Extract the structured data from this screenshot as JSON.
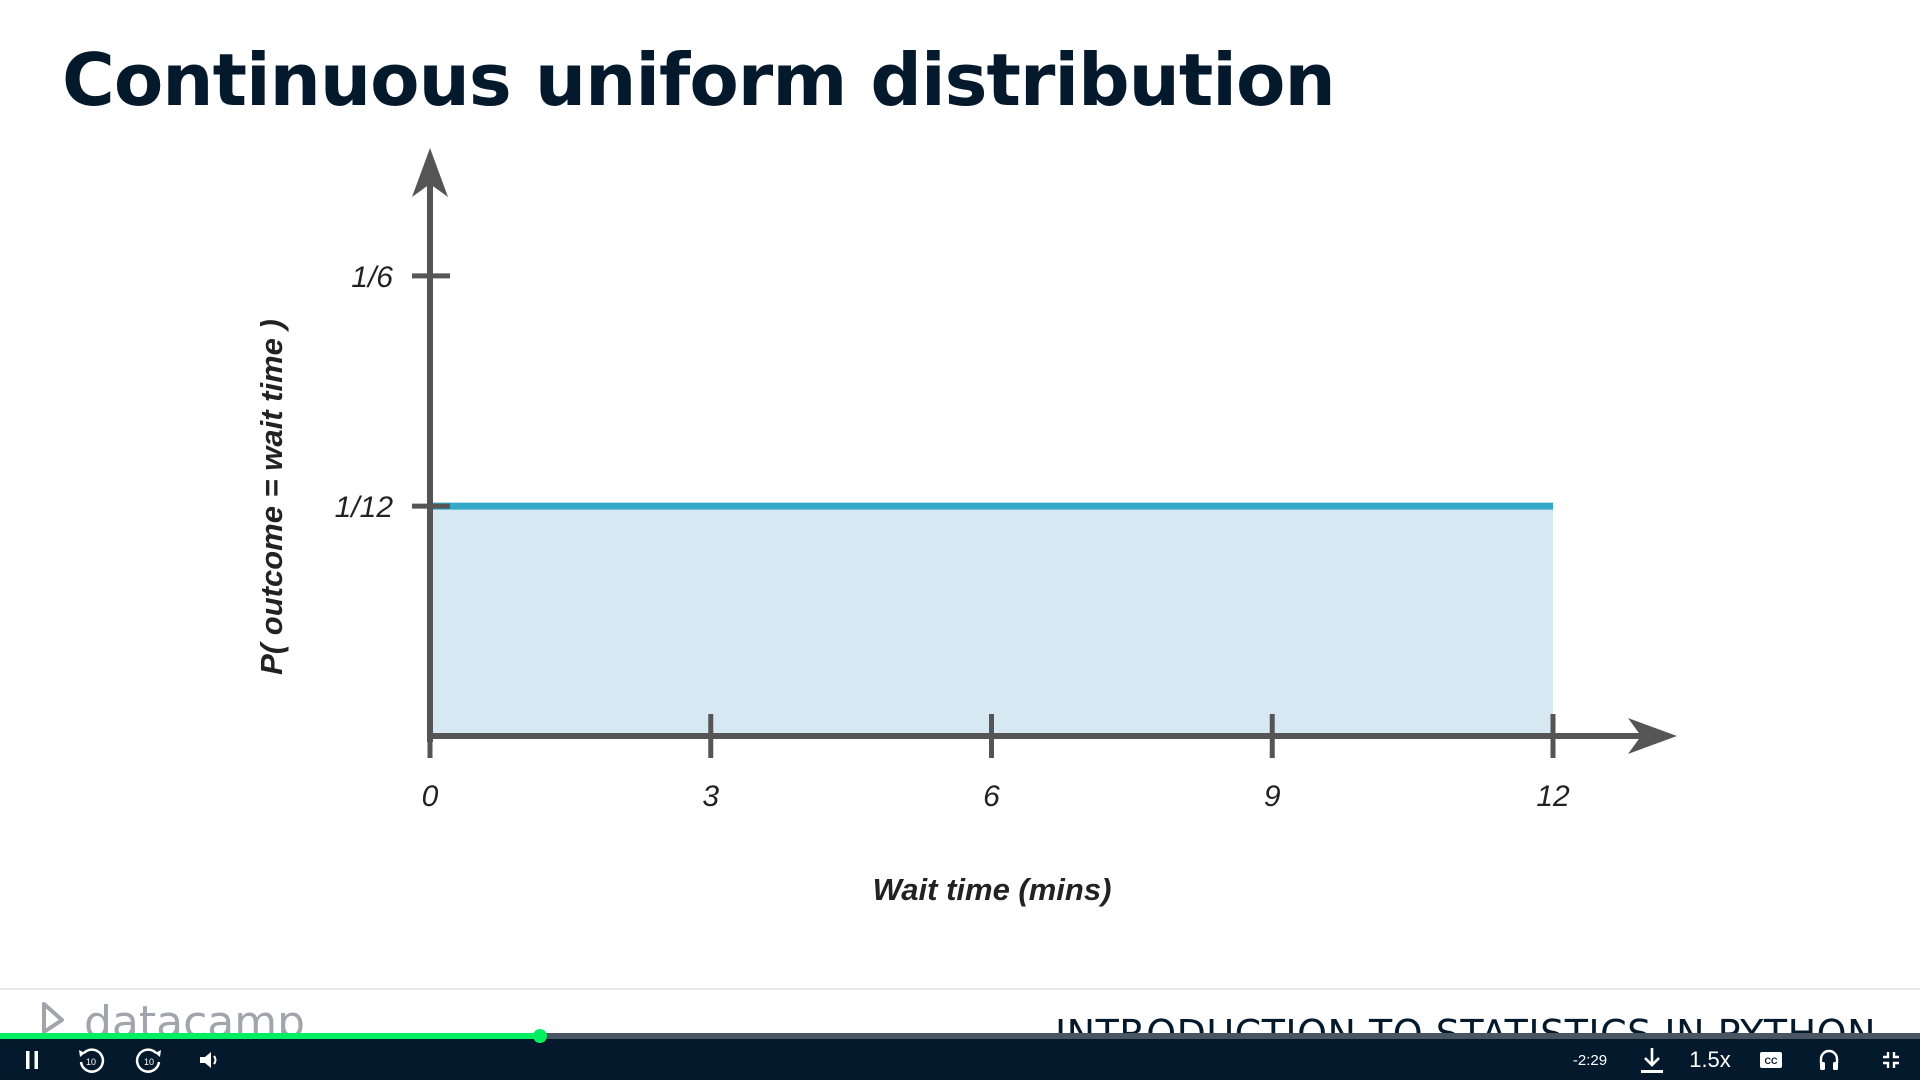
{
  "slide": {
    "title": "Continuous uniform distribution",
    "footer_course": "INTRODUCTION TO STATISTICS IN PYTHON",
    "logo_text": "datacamp"
  },
  "chart_data": {
    "type": "area",
    "x": [
      0,
      12
    ],
    "y": [
      0.0833,
      0.0833
    ],
    "xlim": [
      0,
      13.3
    ],
    "ylim": [
      0,
      0.2
    ],
    "x_ticks": [
      0,
      3,
      6,
      9,
      12
    ],
    "x_tick_labels": [
      "0",
      "3",
      "6",
      "9",
      "12"
    ],
    "y_ticks": [
      0.0833,
      0.1667
    ],
    "y_tick_labels": [
      "1/12",
      "1/6"
    ],
    "xlabel": "Wait time (mins)",
    "ylabel": "P( outcome  = wait time )",
    "grid": false,
    "line_color": "#33a9c9",
    "fill_color": "#d6e9f3",
    "axis_color": "#555555"
  },
  "player": {
    "progress": 0.281,
    "time_remaining": "-2:29",
    "speed": "1.5x",
    "progress_color": "#03ef62",
    "bar_color": "#05192d",
    "icons": [
      "pause-icon",
      "rewind-10-icon",
      "forward-10-icon",
      "volume-icon",
      "download-icon",
      "captions-icon",
      "audio-icon",
      "exit-fullscreen-icon"
    ]
  }
}
